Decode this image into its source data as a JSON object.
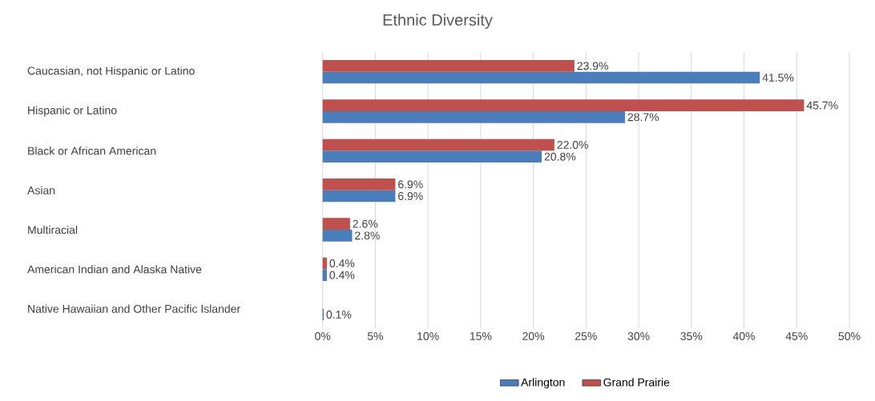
{
  "chart_data": {
    "type": "bar",
    "orientation": "horizontal",
    "title": "Ethnic Diversity",
    "categories": [
      "Caucasian, not Hispanic or Latino",
      "Hispanic or Latino",
      "Black or African American",
      "Asian",
      "Multiracial",
      "American Indian and Alaska Native",
      "Native Hawaiian and Other Pacific Islander"
    ],
    "series": [
      {
        "name": "Arlington",
        "color": "#4a7ebb",
        "values": [
          41.5,
          28.7,
          20.8,
          6.9,
          2.8,
          0.4,
          0.1
        ],
        "value_labels": [
          "41.5%",
          "28.7%",
          "20.8%",
          "6.9%",
          "2.8%",
          "0.4%",
          "0.1%"
        ]
      },
      {
        "name": "Grand Prairie",
        "color": "#c0504d",
        "values": [
          23.9,
          45.7,
          22.0,
          6.9,
          2.6,
          0.4,
          null
        ],
        "value_labels": [
          "23.9%",
          "45.7%",
          "22.0%",
          "6.9%",
          "2.6%",
          "0.4%",
          null
        ]
      }
    ],
    "xlim": [
      0,
      50
    ],
    "xticks": [
      {
        "value": 0,
        "label": "0%"
      },
      {
        "value": 5,
        "label": "5%"
      },
      {
        "value": 10,
        "label": "10%"
      },
      {
        "value": 15,
        "label": "15%"
      },
      {
        "value": 20,
        "label": "20%"
      },
      {
        "value": 25,
        "label": "25%"
      },
      {
        "value": 30,
        "label": "30%"
      },
      {
        "value": 35,
        "label": "35%"
      },
      {
        "value": 40,
        "label": "40%"
      },
      {
        "value": 45,
        "label": "45%"
      },
      {
        "value": 50,
        "label": "50%"
      }
    ],
    "grid": "x",
    "legend": "bottom"
  }
}
